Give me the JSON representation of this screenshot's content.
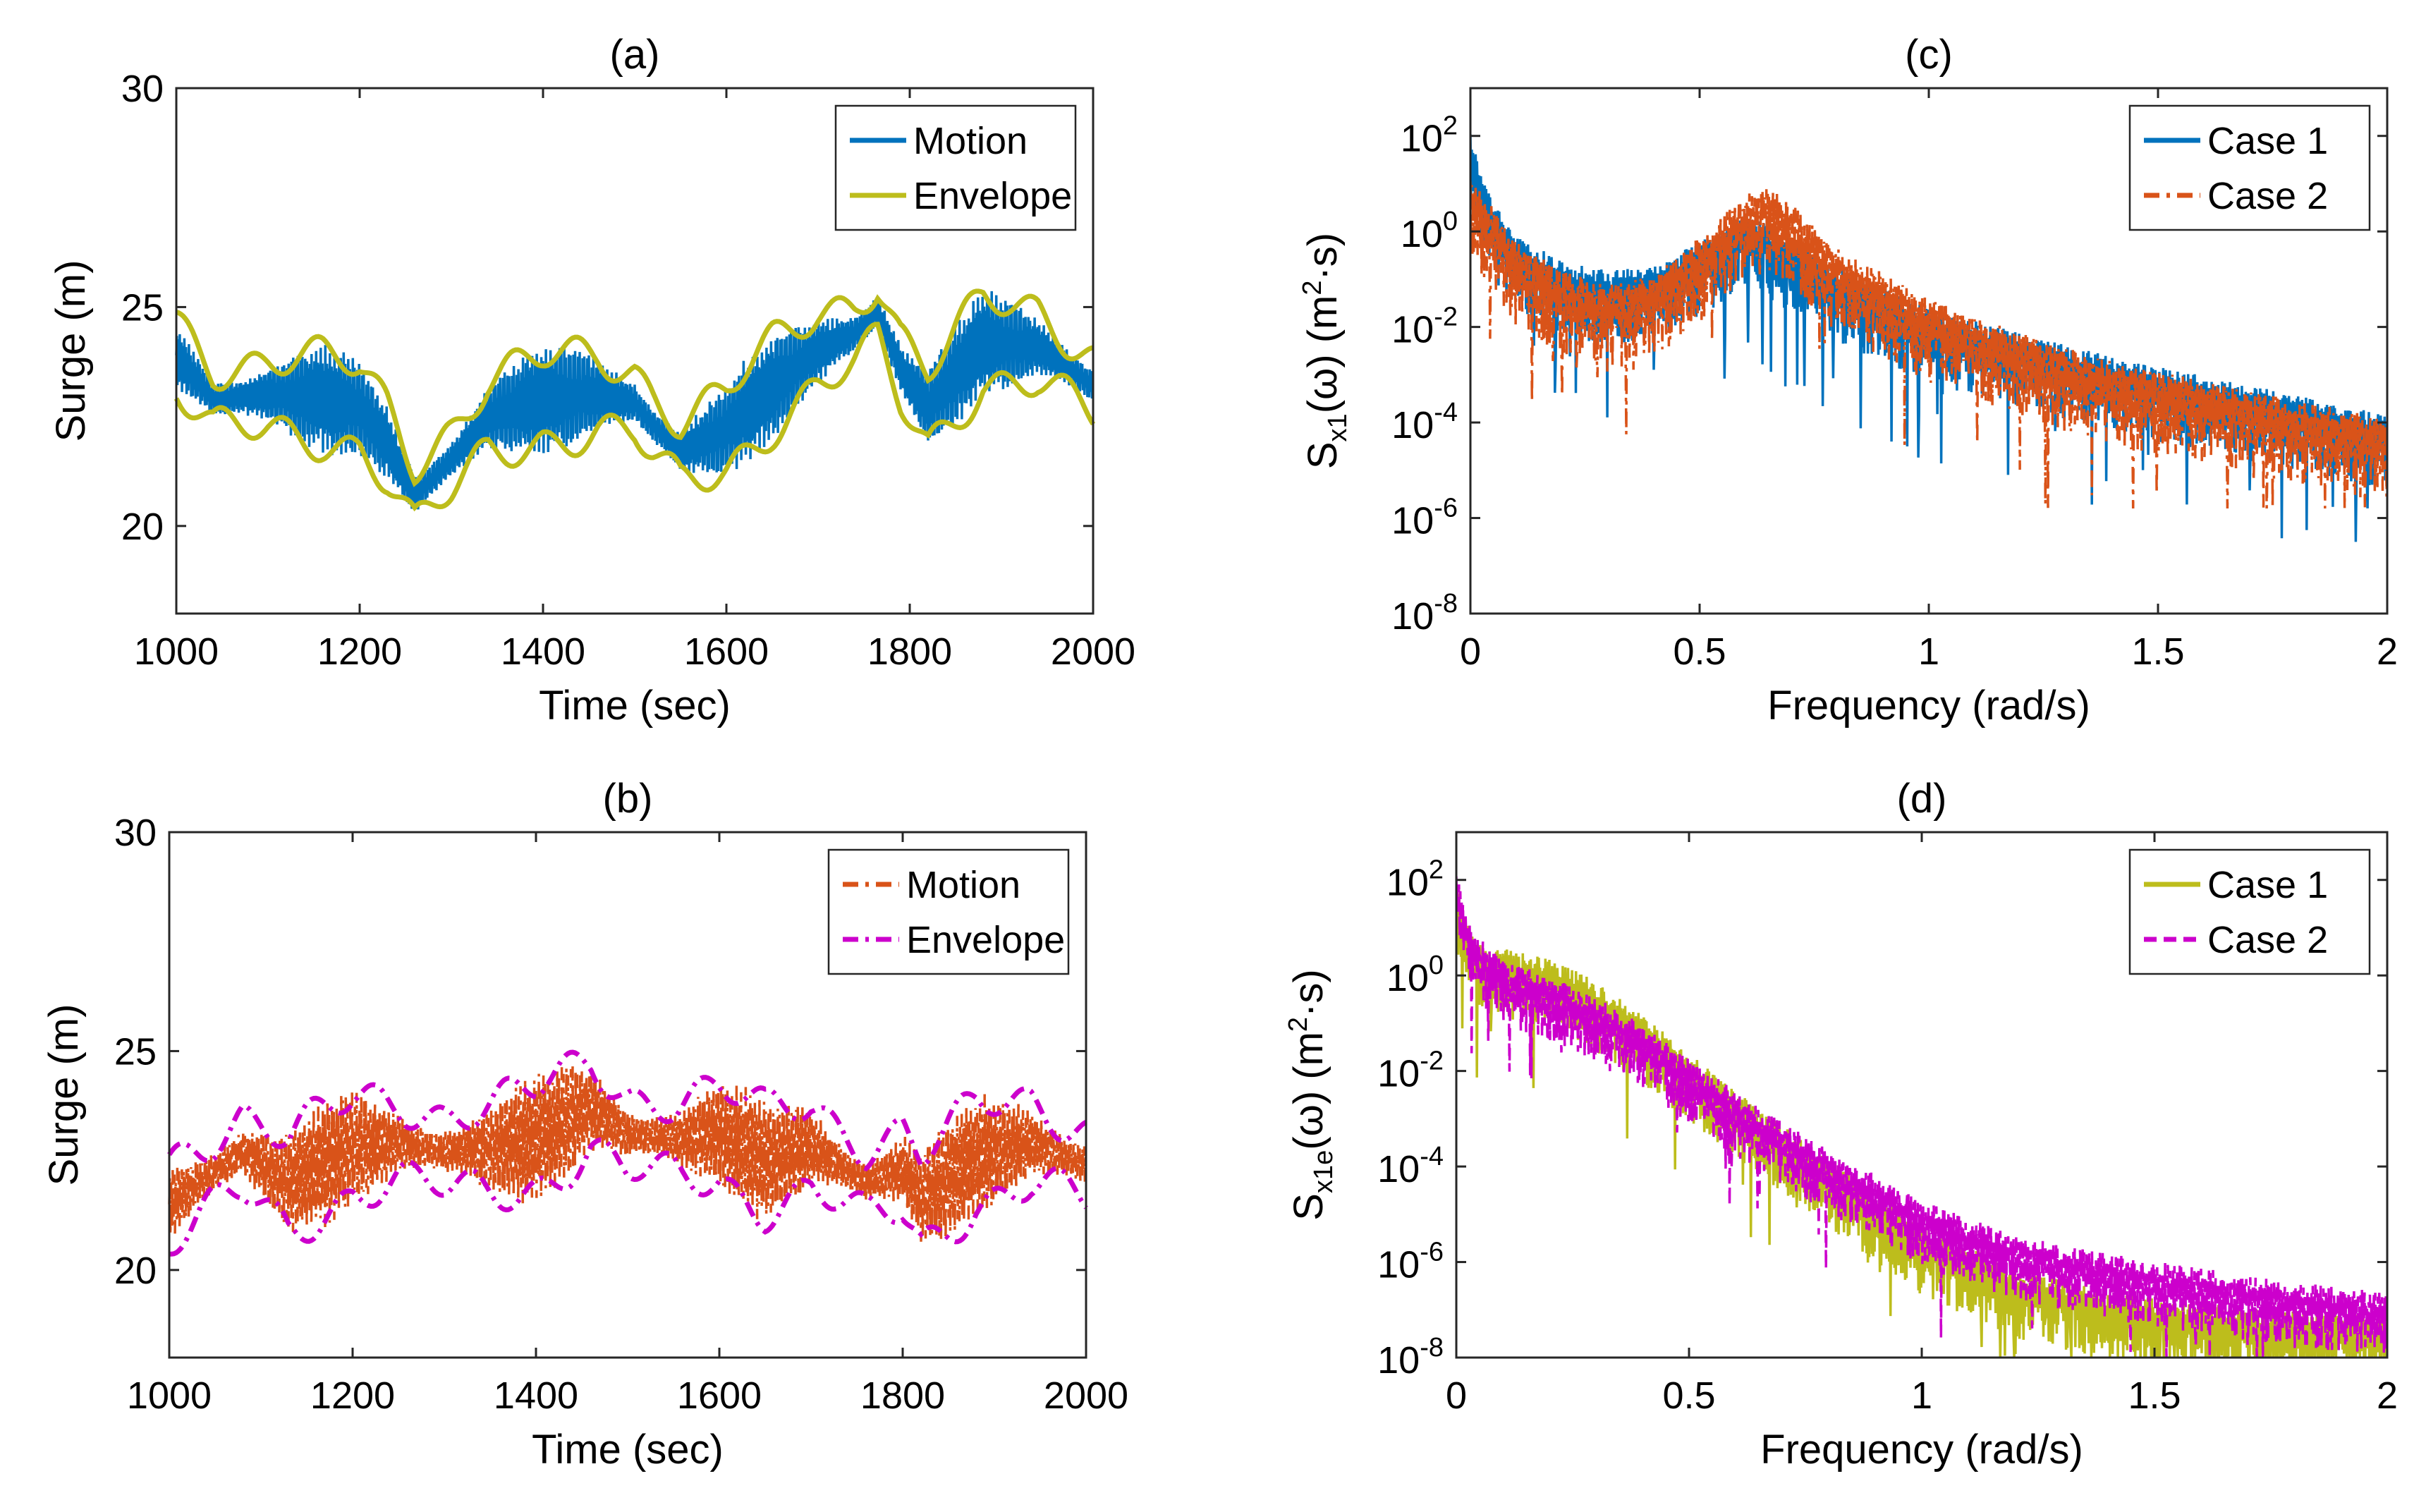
{
  "figure": {
    "panels": [
      "a",
      "b",
      "c",
      "d"
    ]
  },
  "chart_data": [
    {
      "id": "a",
      "type": "line",
      "title": "(a)",
      "xlabel": "Time (sec)",
      "ylabel": "Surge (m)",
      "xlim": [
        1000,
        2000
      ],
      "ylim": [
        18,
        30
      ],
      "xticks": [
        1000,
        1200,
        1400,
        1600,
        1800,
        2000
      ],
      "yticks": [
        20,
        25,
        30
      ],
      "legend_position": "top-right",
      "series": [
        {
          "name": "Motion",
          "color": "#0072BD",
          "style": "solid",
          "kind": "band",
          "amp": 1.1
        },
        {
          "name": "Envelope",
          "color": "#BDBD1C",
          "style": "solid",
          "kind": "envelope",
          "amp": 1.1
        }
      ],
      "center_points": {
        "x": [
          1000,
          1040,
          1100,
          1160,
          1200,
          1230,
          1260,
          1300,
          1340,
          1400,
          1460,
          1500,
          1520,
          1550,
          1600,
          1650,
          1700,
          1740,
          1765,
          1790,
          1820,
          1880,
          1940,
          2000
        ],
        "y": [
          23.9,
          22.9,
          23.0,
          22.9,
          22.7,
          21.9,
          20.7,
          21.5,
          22.5,
          22.9,
          23.0,
          22.8,
          22.3,
          21.7,
          22.2,
          23.2,
          24.0,
          24.4,
          24.9,
          23.6,
          22.7,
          24.2,
          24.1,
          23.2
        ]
      }
    },
    {
      "id": "b",
      "type": "line",
      "title": "(b)",
      "xlabel": "Time (sec)",
      "ylabel": "Surge (m)",
      "xlim": [
        1000,
        2000
      ],
      "ylim": [
        18,
        30
      ],
      "xticks": [
        1000,
        1200,
        1400,
        1600,
        1800,
        2000
      ],
      "yticks": [
        20,
        25,
        30
      ],
      "legend_position": "top-right",
      "series": [
        {
          "name": "Motion",
          "color": "#D95319",
          "style": "dashdot",
          "kind": "band",
          "amp": 1.3
        },
        {
          "name": "Envelope",
          "color": "#CC00CC",
          "style": "dashdot",
          "kind": "envelope",
          "amp": 1.3
        }
      ],
      "center_points": {
        "x": [
          1000,
          1080,
          1130,
          1200,
          1250,
          1300,
          1350,
          1400,
          1460,
          1500,
          1560,
          1600,
          1650,
          1700,
          1760,
          1800,
          1820,
          1880,
          1940,
          2000
        ],
        "y": [
          21.5,
          22.7,
          22.0,
          22.8,
          22.9,
          22.7,
          22.8,
          23.0,
          23.7,
          23.1,
          23.0,
          23.1,
          22.5,
          22.8,
          22.0,
          22.3,
          21.6,
          22.6,
          22.9,
          22.4
        ]
      }
    },
    {
      "id": "c",
      "type": "line",
      "title": "(c)",
      "xlabel": "Frequency (rad/s)",
      "ylabel_main": "S",
      "ylabel_sub": "x1",
      "ylabel_rest": "(ω) (m",
      "ylabel_sup": "2",
      "ylabel_end": "·s)",
      "xlim": [
        0,
        2
      ],
      "ylim_log10": [
        -8,
        3
      ],
      "xticks": [
        0,
        0.5,
        1,
        1.5,
        2
      ],
      "xtick_labels": [
        "0",
        "0.5",
        "1",
        "1.5",
        "2"
      ],
      "yticks_log10": [
        -8,
        -6,
        -4,
        -2,
        0,
        2
      ],
      "ytick_mantissa": "10",
      "ytick_exponents": [
        "-8",
        "-6",
        "-4",
        "-2",
        "0",
        "2"
      ],
      "legend_position": "top-right",
      "series": [
        {
          "name": "Case 1",
          "color": "#0072BD",
          "style": "solid",
          "freq": [
            0,
            0.02,
            0.05,
            0.1,
            0.2,
            0.3,
            0.4,
            0.5,
            0.6,
            0.7,
            0.8,
            1.0,
            1.2,
            1.4,
            1.6,
            1.8,
            2.0
          ],
          "log10_psd": [
            2.0,
            1.2,
            0.4,
            -0.2,
            -0.8,
            -1.0,
            -0.9,
            -0.4,
            0.2,
            -0.3,
            -0.9,
            -1.8,
            -2.3,
            -2.8,
            -3.2,
            -3.6,
            -4.0
          ],
          "noise": 1.4,
          "floor": -6.5
        },
        {
          "name": "Case 2",
          "color": "#D95319",
          "style": "dashdot",
          "freq": [
            0,
            0.02,
            0.05,
            0.1,
            0.2,
            0.3,
            0.4,
            0.5,
            0.6,
            0.65,
            0.7,
            0.8,
            1.0,
            1.2,
            1.4,
            1.6,
            1.8,
            2.0
          ],
          "log10_psd": [
            1.0,
            0.7,
            0.3,
            -0.4,
            -1.0,
            -1.3,
            -1.1,
            -0.3,
            0.6,
            0.8,
            0.4,
            -0.5,
            -1.6,
            -2.3,
            -2.9,
            -3.3,
            -3.7,
            -4.1
          ],
          "noise": 1.6,
          "floor": -5.8
        }
      ]
    },
    {
      "id": "d",
      "type": "line",
      "title": "(d)",
      "xlabel": "Frequency (rad/s)",
      "ylabel_main": "S",
      "ylabel_sub": "x1e",
      "ylabel_rest": "(ω) (m",
      "ylabel_sup": "2",
      "ylabel_end": "·s)",
      "xlim": [
        0,
        2
      ],
      "ylim_log10": [
        -8,
        3
      ],
      "xticks": [
        0,
        0.5,
        1,
        1.5,
        2
      ],
      "xtick_labels": [
        "0",
        "0.5",
        "1",
        "1.5",
        "2"
      ],
      "yticks_log10": [
        -8,
        -6,
        -4,
        -2,
        0,
        2
      ],
      "ytick_mantissa": "10",
      "ytick_exponents": [
        "-8",
        "-6",
        "-4",
        "-2",
        "0",
        "2"
      ],
      "legend_position": "top-right",
      "series": [
        {
          "name": "Case 1",
          "color": "#BDBD1C",
          "style": "solid",
          "freq": [
            0,
            0.02,
            0.05,
            0.1,
            0.2,
            0.3,
            0.4,
            0.5,
            0.6,
            0.8,
            1.0,
            1.2,
            1.4,
            1.6,
            1.8,
            2.0
          ],
          "log10_psd": [
            1.8,
            1.0,
            0.5,
            0.4,
            0.2,
            -0.3,
            -1.0,
            -1.8,
            -2.6,
            -4.0,
            -5.4,
            -6.3,
            -6.8,
            -7.0,
            -7.2,
            -7.3
          ],
          "noise": 1.3,
          "floor": -8.5
        },
        {
          "name": "Case 2",
          "color": "#CC00CC",
          "style": "dashed",
          "freq": [
            0,
            0.02,
            0.05,
            0.1,
            0.2,
            0.3,
            0.4,
            0.5,
            0.6,
            0.8,
            1.0,
            1.2,
            1.4,
            1.6,
            1.8,
            2.0
          ],
          "log10_psd": [
            2.0,
            1.2,
            0.6,
            0.2,
            -0.2,
            -0.6,
            -1.2,
            -1.9,
            -2.6,
            -3.8,
            -4.9,
            -5.6,
            -6.0,
            -6.3,
            -6.6,
            -6.8
          ],
          "noise": 1.2,
          "floor": -8.3
        }
      ]
    }
  ]
}
